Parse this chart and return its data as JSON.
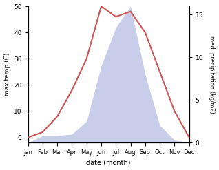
{
  "months": [
    "Jan",
    "Feb",
    "Mar",
    "Apr",
    "May",
    "Jun",
    "Jul",
    "Aug",
    "Sep",
    "Oct",
    "Nov",
    "Dec"
  ],
  "temp": [
    0,
    2,
    8,
    18,
    30,
    50,
    46,
    48,
    40,
    25,
    10,
    0
  ],
  "precip": [
    0.0,
    0.8,
    0.8,
    1.0,
    2.5,
    9.0,
    13.5,
    16.0,
    8.0,
    2.0,
    0.3,
    0.0
  ],
  "temp_color": "#cc5555",
  "precip_fill_color": "#c8ceea",
  "ylabel_left": "max temp (C)",
  "ylabel_right": "med. precipitation (kg/m2)",
  "xlabel": "date (month)",
  "ylim_left": [
    -2,
    50
  ],
  "ylim_right": [
    0,
    16
  ],
  "yticks_right": [
    0,
    5,
    10,
    15
  ],
  "yticks_left": [
    0,
    10,
    20,
    30,
    40,
    50
  ],
  "bg_color": "#ffffff"
}
